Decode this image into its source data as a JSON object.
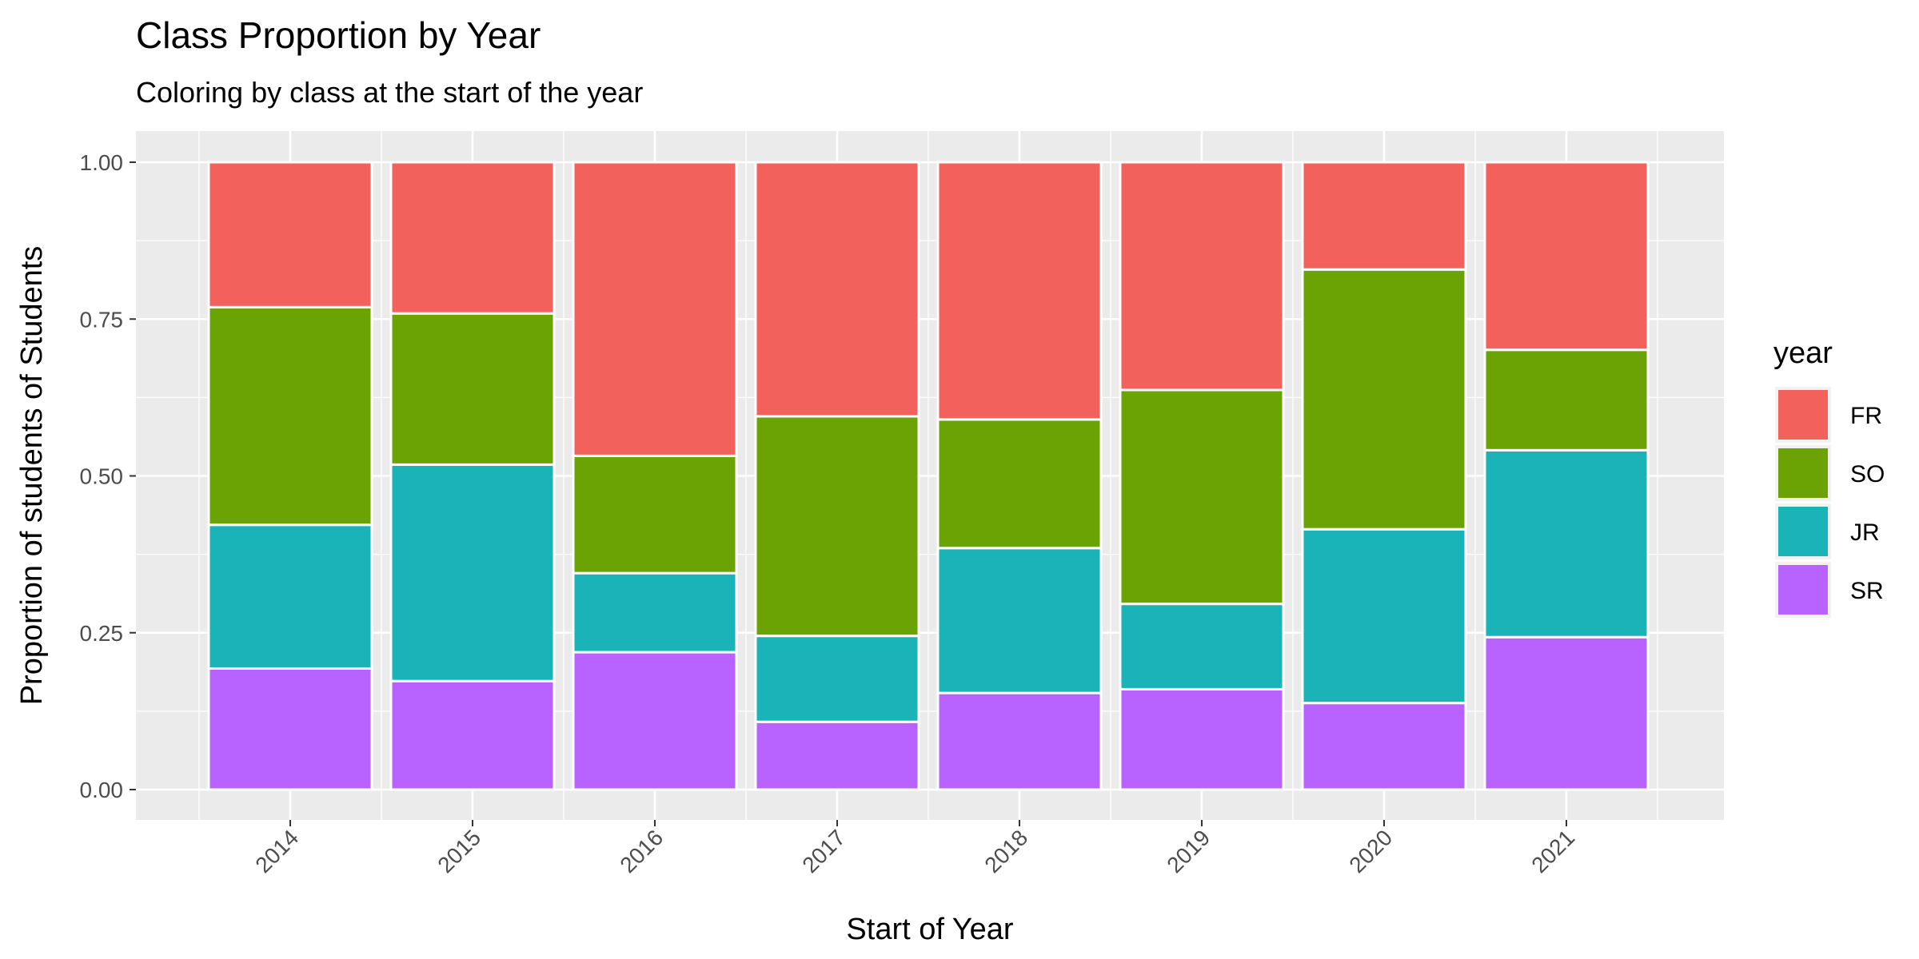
{
  "chart_data": {
    "type": "bar",
    "stacked": true,
    "title": "Class Proportion by Year",
    "subtitle": "Coloring by class at the start of the year",
    "xlabel": "Start of Year",
    "ylabel": "Proportion of students of Students",
    "categories": [
      "2014",
      "2015",
      "2016",
      "2017",
      "2018",
      "2019",
      "2020",
      "2021"
    ],
    "ylim": [
      0,
      1
    ],
    "yticks": [
      "0.00",
      "0.25",
      "0.50",
      "0.75",
      "1.00"
    ],
    "grid": true,
    "legend": {
      "title": "year",
      "position": "right"
    },
    "series": [
      {
        "name": "SR",
        "color": "#B863FF",
        "values": [
          0.193,
          0.173,
          0.219,
          0.108,
          0.154,
          0.16,
          0.138,
          0.243
        ]
      },
      {
        "name": "JR",
        "color": "#19B3B8",
        "values": [
          0.229,
          0.345,
          0.126,
          0.137,
          0.231,
          0.136,
          0.277,
          0.298
        ]
      },
      {
        "name": "SO",
        "color": "#6BA305",
        "values": [
          0.347,
          0.241,
          0.187,
          0.35,
          0.205,
          0.341,
          0.414,
          0.16
        ]
      },
      {
        "name": "FR",
        "color": "#F2615C",
        "values": [
          0.231,
          0.241,
          0.468,
          0.405,
          0.41,
          0.363,
          0.171,
          0.299
        ]
      }
    ]
  }
}
